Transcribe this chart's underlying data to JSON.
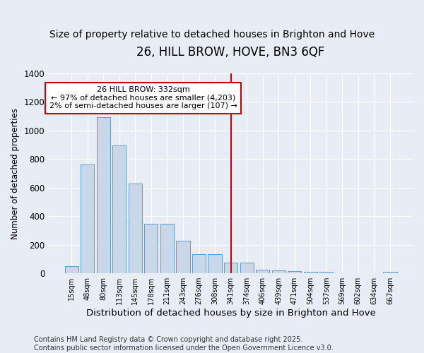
{
  "title": "26, HILL BROW, HOVE, BN3 6QF",
  "subtitle": "Size of property relative to detached houses in Brighton and Hove",
  "xlabel": "Distribution of detached houses by size in Brighton and Hove",
  "ylabel": "Number of detached properties",
  "categories": [
    "15sqm",
    "48sqm",
    "80sqm",
    "113sqm",
    "145sqm",
    "178sqm",
    "211sqm",
    "243sqm",
    "276sqm",
    "308sqm",
    "341sqm",
    "374sqm",
    "406sqm",
    "439sqm",
    "471sqm",
    "504sqm",
    "537sqm",
    "569sqm",
    "602sqm",
    "634sqm",
    "667sqm"
  ],
  "values": [
    50,
    760,
    1095,
    895,
    630,
    345,
    345,
    230,
    135,
    135,
    75,
    75,
    28,
    20,
    17,
    12,
    10,
    1,
    0,
    0,
    10
  ],
  "bar_color": "#c8d8e8",
  "bar_edge_color": "#5b9bd5",
  "vline_index": 10,
  "vline_color": "#cc0000",
  "annotation_text": "26 HILL BROW: 332sqm\n← 97% of detached houses are smaller (4,203)\n2% of semi-detached houses are larger (107) →",
  "annotation_box_color": "#cc0000",
  "ylim": [
    0,
    1400
  ],
  "yticks": [
    0,
    200,
    400,
    600,
    800,
    1000,
    1200,
    1400
  ],
  "background_color": "#e8edf5",
  "grid_color": "#ffffff",
  "footer": "Contains HM Land Registry data © Crown copyright and database right 2025.\nContains public sector information licensed under the Open Government Licence v3.0.",
  "title_fontsize": 12,
  "subtitle_fontsize": 10,
  "xlabel_fontsize": 9.5,
  "ylabel_fontsize": 8.5,
  "footer_fontsize": 7
}
